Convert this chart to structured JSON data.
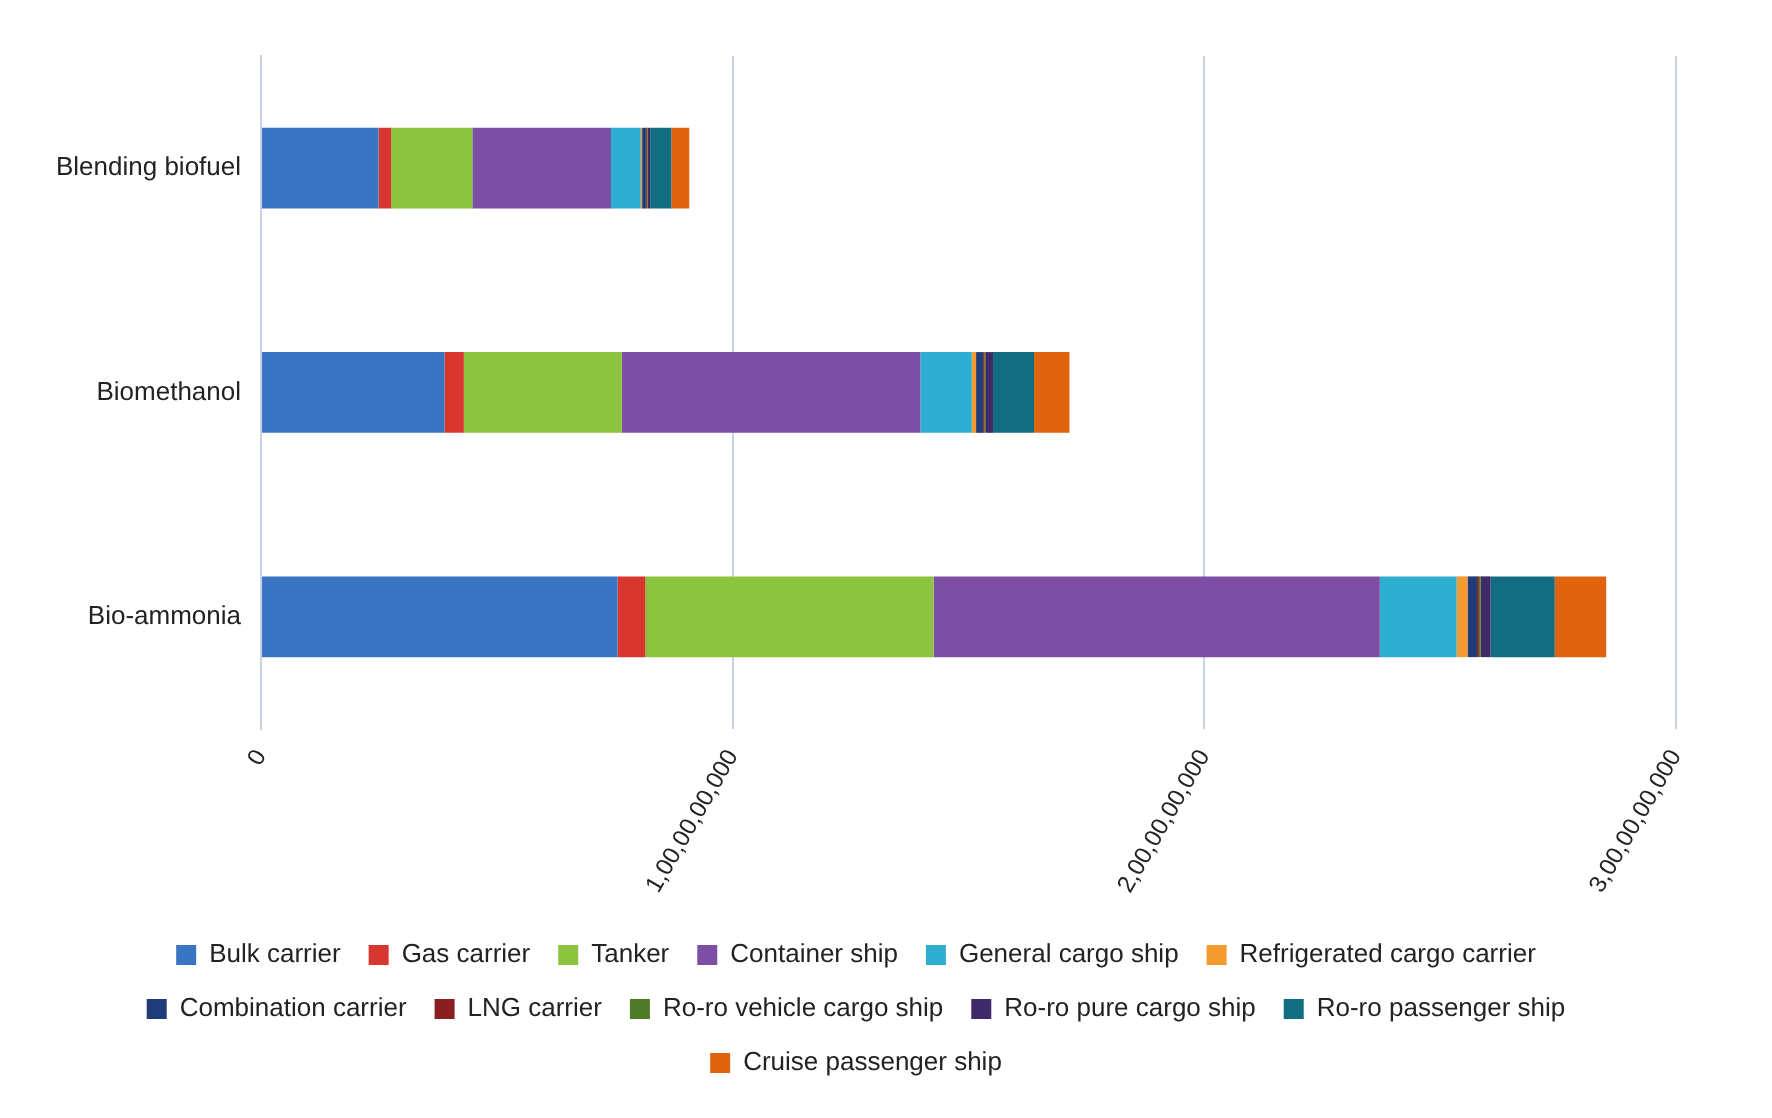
{
  "chart_data": {
    "type": "bar",
    "orientation": "horizontal",
    "stacked": true,
    "categories": [
      "Blending biofuel",
      "Biomethanol",
      "Bio-ammonia"
    ],
    "series": [
      {
        "name": "Bulk carrier",
        "color": "#3a75c4",
        "values": [
          249000000,
          389000000,
          756000000
        ]
      },
      {
        "name": "Gas carrier",
        "color": "#d7372f",
        "values": [
          27000000,
          41000000,
          59000000
        ]
      },
      {
        "name": "Tanker",
        "color": "#8cc43f",
        "values": [
          172000000,
          335000000,
          611000000
        ]
      },
      {
        "name": "Container ship",
        "color": "#7c4fa5",
        "values": [
          294000000,
          633000000,
          946000000
        ]
      },
      {
        "name": "General cargo ship",
        "color": "#2eaed0",
        "values": [
          63000000,
          109000000,
          163000000
        ]
      },
      {
        "name": "Refrigerated cargo carrier",
        "color": "#f59a2c",
        "values": [
          3000000,
          9000000,
          23000000
        ]
      },
      {
        "name": "Combination carrier",
        "color": "#1f3c78",
        "values": [
          8000000,
          15000000,
          20000000
        ]
      },
      {
        "name": "LNG carrier",
        "color": "#8b1e1e",
        "values": [
          2000000,
          3000000,
          4000000
        ]
      },
      {
        "name": "Ro-ro vehicle cargo ship",
        "color": "#4f7a28",
        "values": [
          2000000,
          3000000,
          4000000
        ]
      },
      {
        "name": "Ro-ro pure cargo ship",
        "color": "#3e2a68",
        "values": [
          5000000,
          15000000,
          21000000
        ]
      },
      {
        "name": "Ro-ro passenger ship",
        "color": "#136d80",
        "values": [
          45000000,
          87000000,
          136000000
        ]
      },
      {
        "name": "Cruise passenger ship",
        "color": "#e0640f",
        "values": [
          38000000,
          75000000,
          109000000
        ]
      }
    ],
    "xlim": [
      0,
      3000000000
    ],
    "xticks": [
      0,
      {
        "value": 1000000000,
        "label": "1,00,00,00,000"
      },
      {
        "value": 2000000000,
        "label": "2,00,00,00,000"
      },
      {
        "value": 3000000000,
        "label": "3,00,00,00,000"
      }
    ],
    "grid": "x",
    "legend": "bottom"
  }
}
